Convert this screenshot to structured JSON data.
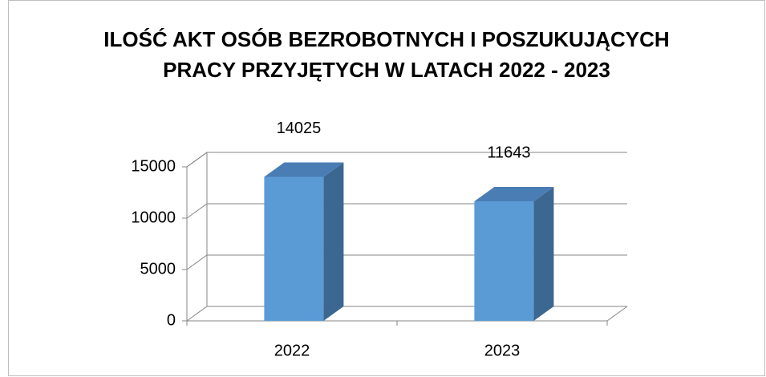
{
  "chart_data": {
    "type": "bar3d",
    "title": [
      "ILOŚĆ AKT OSÓB BEZROBOTNYCH I POSZUKUJĄCYCH",
      "PRACY PRZYJĘTYCH W LATACH 2022 - 2023"
    ],
    "categories": [
      "2022",
      "2023"
    ],
    "values": [
      14025,
      11643
    ],
    "color": "#5b9bd5",
    "ylim": [
      0,
      15000
    ],
    "yticks": [
      0,
      5000,
      10000,
      15000
    ],
    "grid": true
  }
}
